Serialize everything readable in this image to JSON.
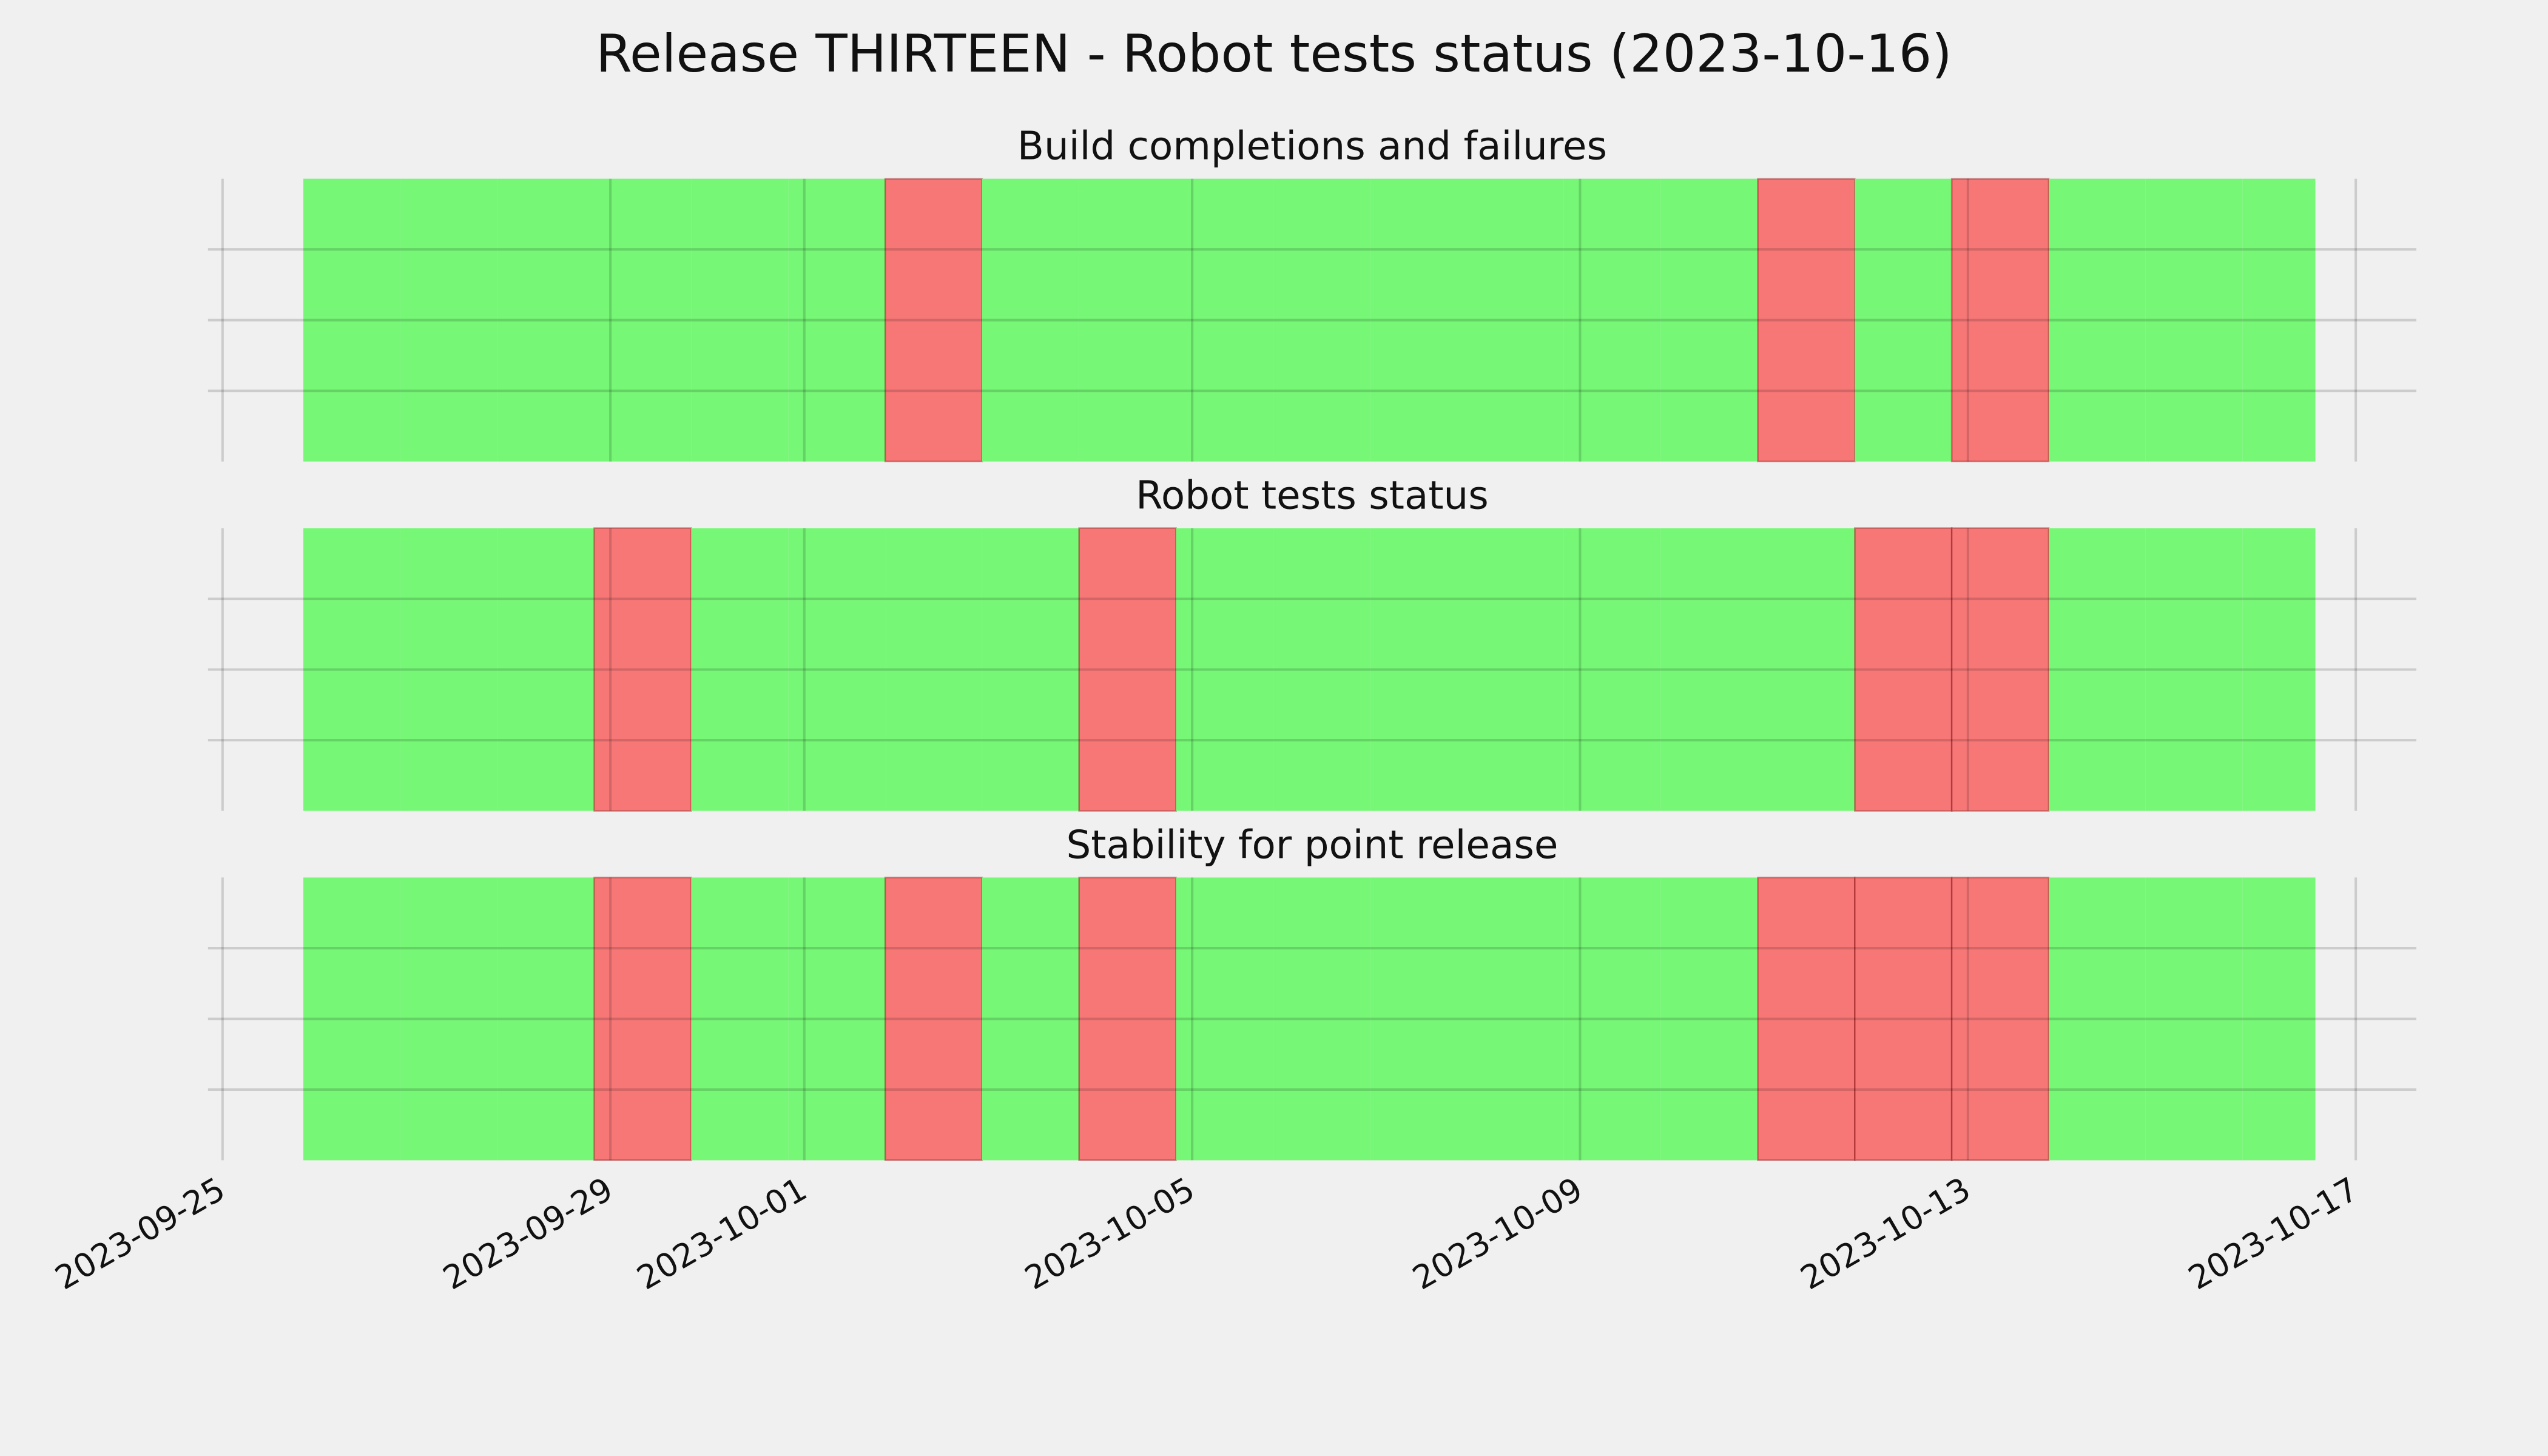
{
  "title": "Release THIRTEEN - Robot tests status (2023-10-16)",
  "chart_data": {
    "type": "timeline",
    "xlim": [
      "2023-09-24T20:24",
      "2023-10-17T15:00"
    ],
    "xticks": [
      "2023-09-25",
      "2023-09-29",
      "2023-10-01",
      "2023-10-05",
      "2023-10-09",
      "2023-10-13",
      "2023-10-17"
    ],
    "ylim": [
      0,
      1
    ],
    "yticks": [
      0.25,
      0.5,
      0.75
    ],
    "grid": true,
    "colors": {
      "pass": "#76f776",
      "fail": "#f77777"
    },
    "bins": [
      "2023-09-25T20:00",
      "2023-09-26T20:00",
      "2023-09-27T20:00",
      "2023-09-28T20:00",
      "2023-09-29T20:00",
      "2023-09-30T20:00",
      "2023-10-01T20:00",
      "2023-10-02T20:00",
      "2023-10-03T20:00",
      "2023-10-04T20:00",
      "2023-10-05T20:00",
      "2023-10-06T20:00",
      "2023-10-07T20:00",
      "2023-10-08T20:00",
      "2023-10-09T20:00",
      "2023-10-10T20:00",
      "2023-10-11T20:00",
      "2023-10-12T20:00",
      "2023-10-13T20:00",
      "2023-10-14T20:00",
      "2023-10-15T20:00",
      "2023-10-16T14:00"
    ],
    "panels": [
      {
        "title": "Build completions and failures",
        "values": [
          1,
          1,
          1,
          1,
          1,
          1,
          0,
          1,
          1,
          1,
          1,
          1,
          1,
          1,
          1,
          0,
          1,
          0,
          1,
          1,
          1
        ]
      },
      {
        "title": "Robot tests status",
        "values": [
          1,
          1,
          1,
          0,
          1,
          1,
          1,
          1,
          0,
          1,
          1,
          1,
          1,
          1,
          1,
          1,
          0,
          0,
          1,
          1,
          1
        ]
      },
      {
        "title": "Stability for point release",
        "values": [
          1,
          1,
          1,
          0,
          1,
          1,
          0,
          1,
          0,
          1,
          1,
          1,
          1,
          1,
          1,
          0,
          0,
          0,
          1,
          1,
          1
        ]
      }
    ]
  }
}
